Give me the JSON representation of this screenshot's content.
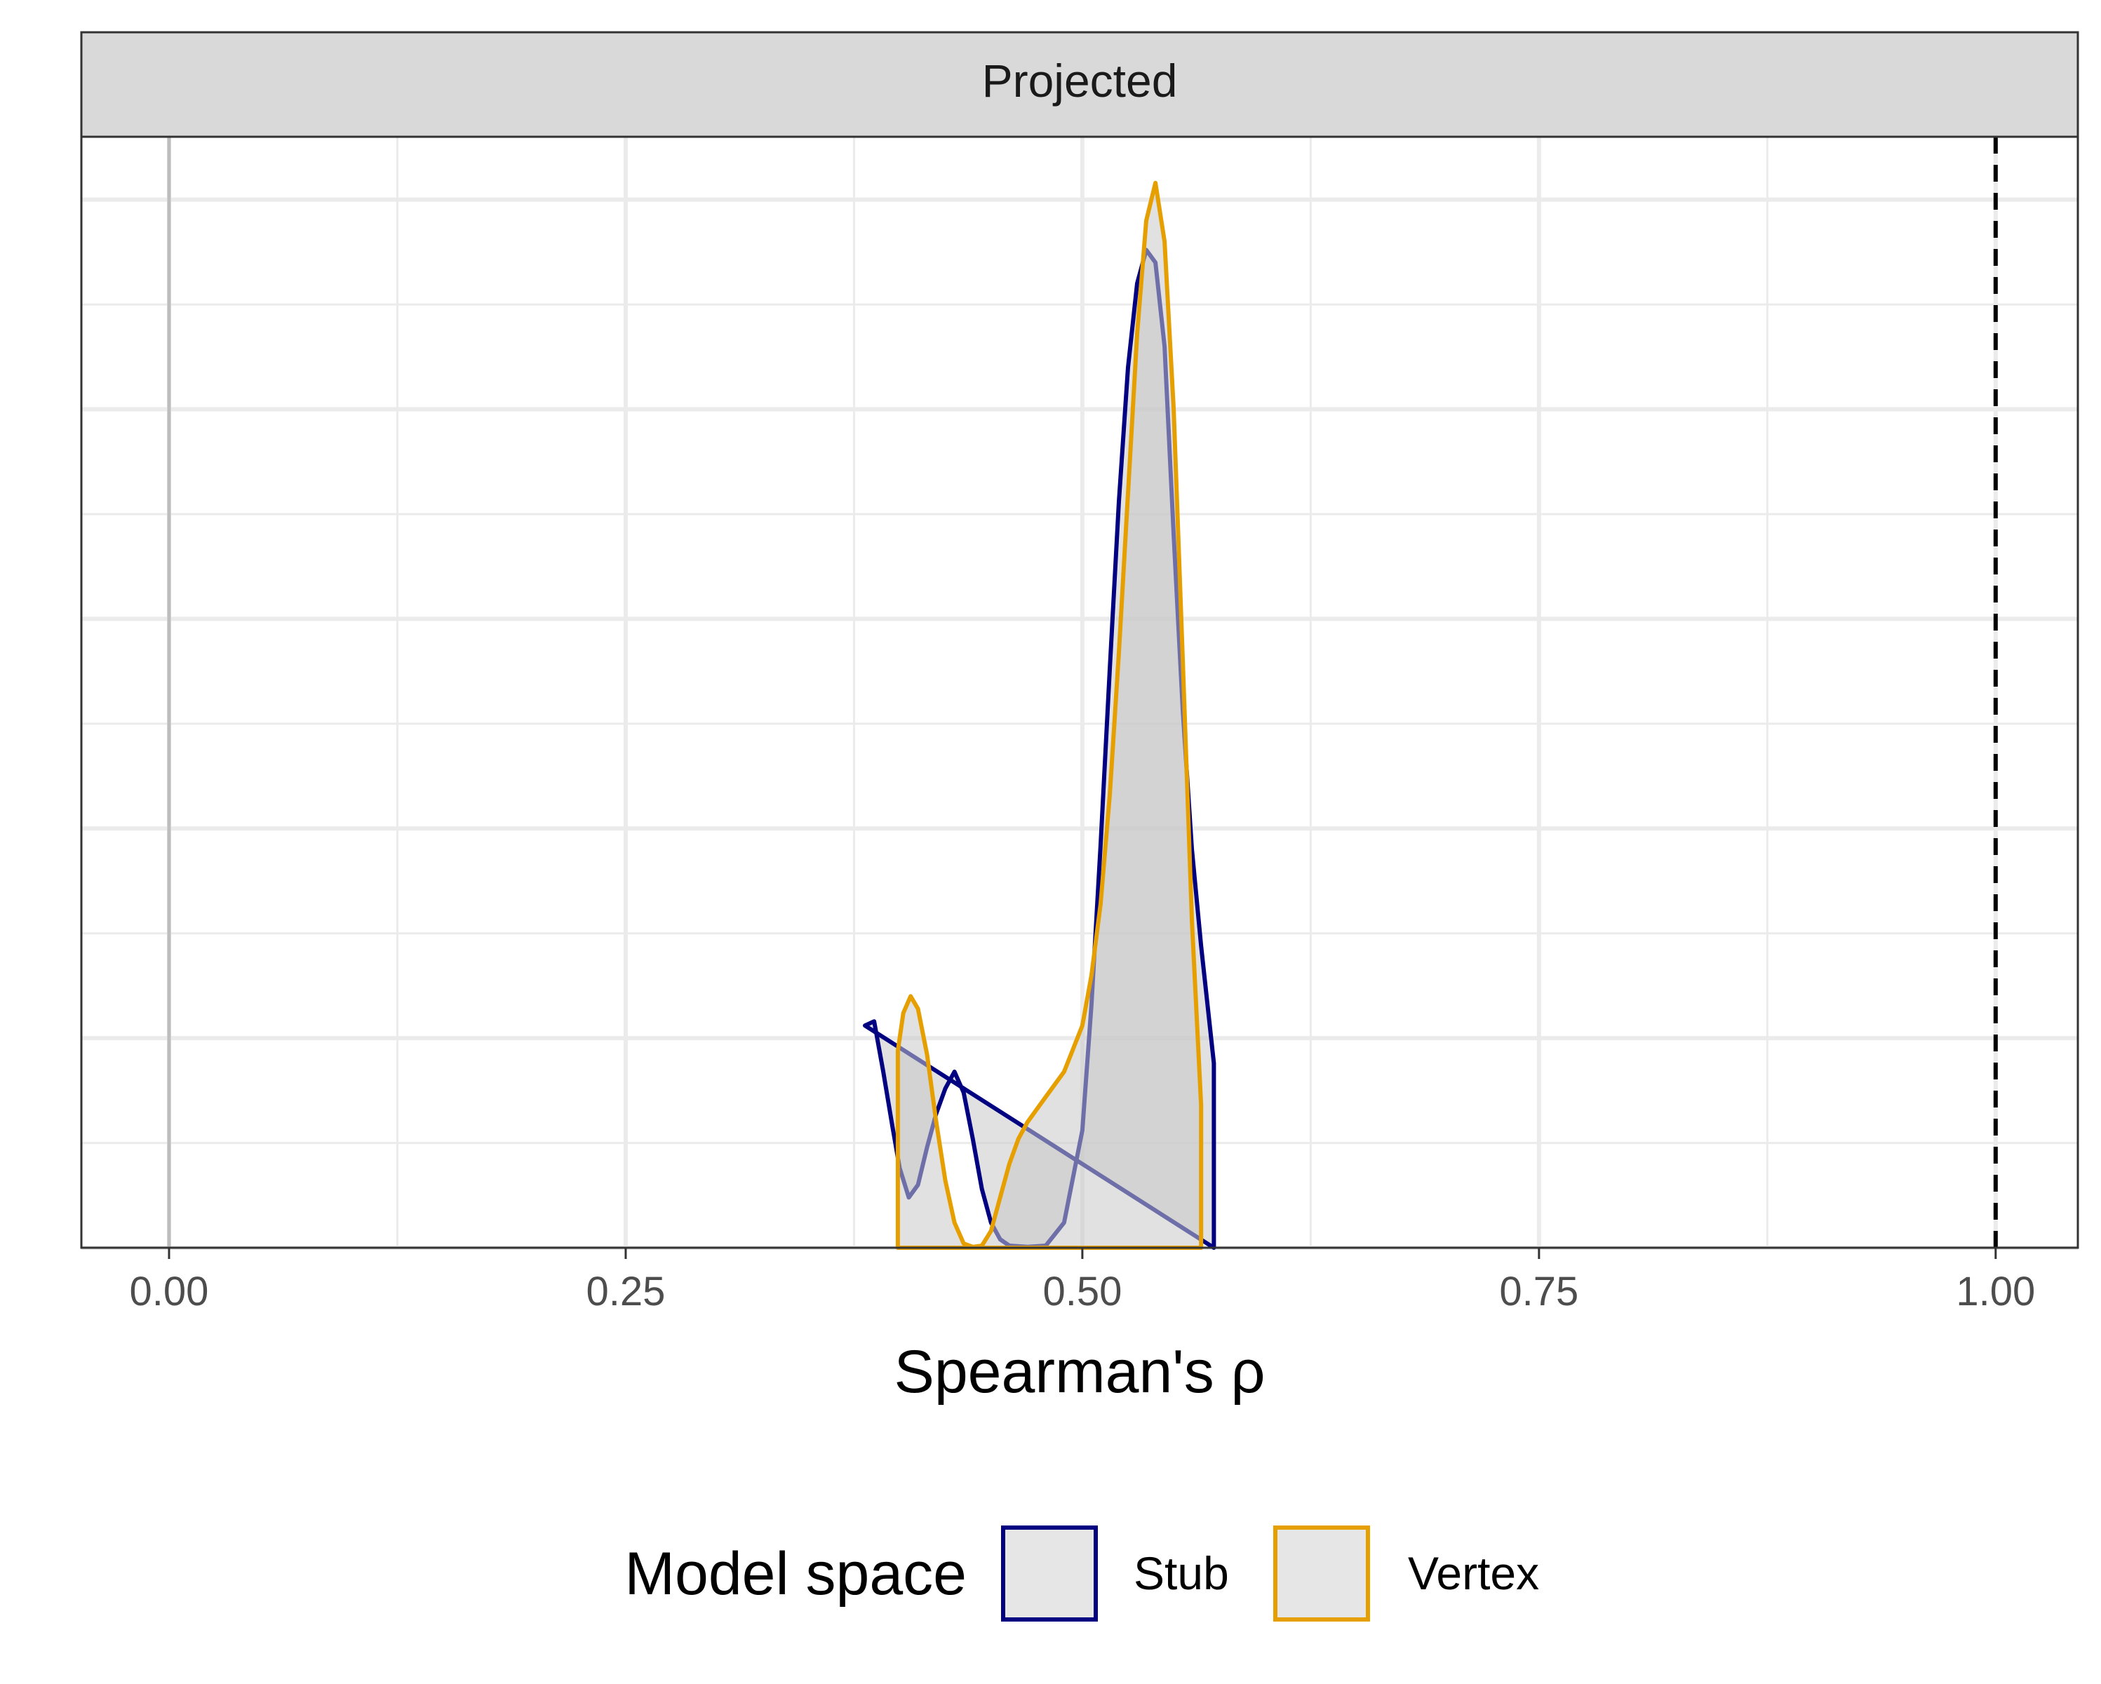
{
  "chart_data": {
    "type": "area",
    "subtype": "density",
    "facet_label": "Projected",
    "xlabel": "Spearman's ρ",
    "ylabel": "",
    "xlim": [
      -0.048,
      1.045
    ],
    "ylim": [
      0,
      26.5
    ],
    "x_ticks": [
      0.0,
      0.25,
      0.5,
      0.75,
      1.0
    ],
    "x_tick_labels": [
      "0.00",
      "0.25",
      "0.50",
      "0.75",
      "1.00"
    ],
    "y_ticks_hidden": [
      0,
      5,
      10,
      15,
      20,
      25
    ],
    "y_tick_labels_shown": false,
    "grid": true,
    "reference_lines": [
      {
        "x": 0.0,
        "style": "solid",
        "color": "#bdbdbd"
      },
      {
        "x": 1.0,
        "style": "dashed",
        "color": "#000000"
      }
    ],
    "legend": {
      "title": "Model space",
      "position": "bottom",
      "items": [
        "Stub",
        "Vertex"
      ]
    },
    "series": [
      {
        "name": "Stub",
        "color": "#000080",
        "fill": "#c8c8c8",
        "x": [
          0.381,
          0.386,
          0.391,
          0.396,
          0.4,
          0.405,
          0.41,
          0.415,
          0.42,
          0.425,
          0.43,
          0.435,
          0.44,
          0.445,
          0.45,
          0.455,
          0.46,
          0.47,
          0.48,
          0.49,
          0.5,
          0.505,
          0.51,
          0.515,
          0.52,
          0.525,
          0.53,
          0.535,
          0.54,
          0.545,
          0.55,
          0.555,
          0.56,
          0.565,
          0.572,
          0.572
        ],
        "y": [
          5.3,
          5.4,
          4.2,
          2.9,
          1.9,
          1.2,
          1.5,
          2.4,
          3.2,
          3.8,
          4.2,
          3.7,
          2.6,
          1.4,
          0.6,
          0.2,
          0.05,
          0.02,
          0.05,
          0.6,
          2.8,
          5.8,
          9.6,
          13.8,
          17.8,
          21.0,
          23.0,
          23.8,
          23.5,
          21.5,
          17.0,
          12.8,
          9.5,
          7.2,
          4.4,
          0
        ]
      },
      {
        "name": "Vertex",
        "color": "#E69F00",
        "fill": "#c8c8c8",
        "x": [
          0.399,
          0.399,
          0.402,
          0.406,
          0.41,
          0.415,
          0.42,
          0.425,
          0.43,
          0.435,
          0.44,
          0.445,
          0.45,
          0.455,
          0.46,
          0.465,
          0.47,
          0.475,
          0.48,
          0.49,
          0.5,
          0.505,
          0.51,
          0.515,
          0.52,
          0.525,
          0.53,
          0.535,
          0.54,
          0.545,
          0.55,
          0.555,
          0.56,
          0.565,
          0.565
        ],
        "y": [
          0,
          4.7,
          5.6,
          6.0,
          5.7,
          4.6,
          3.0,
          1.6,
          0.6,
          0.1,
          0.02,
          0.05,
          0.4,
          1.2,
          2.0,
          2.6,
          3.0,
          3.3,
          3.6,
          4.2,
          5.3,
          6.5,
          8.2,
          10.8,
          14.2,
          18.0,
          21.8,
          24.5,
          25.4,
          24.0,
          20.0,
          14.0,
          7.8,
          3.4,
          0
        ]
      }
    ]
  }
}
